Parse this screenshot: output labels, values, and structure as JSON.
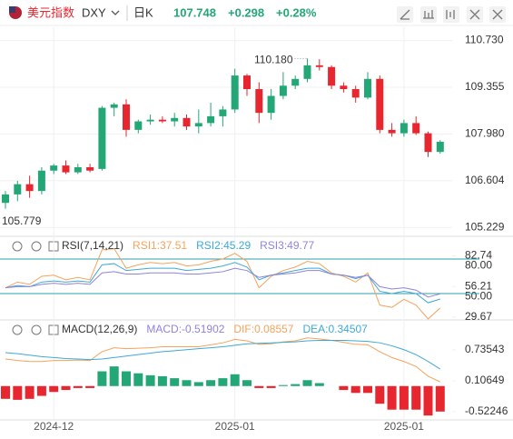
{
  "header": {
    "name": "美元指数",
    "symbol": "DXY",
    "period": "日K",
    "price": "107.748",
    "change": "+0.298",
    "change_pct": "+0.28%"
  },
  "chart_data": [
    {
      "type": "candlestick",
      "up_color": "#23a776",
      "down_color": "#e8262f",
      "categories": [
        null,
        null,
        null,
        null,
        "2024-12",
        null,
        null,
        null,
        null,
        null,
        null,
        null,
        null,
        null,
        null,
        null,
        null,
        null,
        null,
        "2025-01",
        null,
        null,
        null,
        null,
        null,
        null,
        null,
        null,
        null,
        null,
        null,
        null,
        null,
        "2025-01",
        null,
        null,
        null
      ],
      "open": [
        105.95,
        106.2,
        106.5,
        106.3,
        106.9,
        107.05,
        106.85,
        107.0,
        106.95,
        108.75,
        108.85,
        108.1,
        108.35,
        108.4,
        108.35,
        108.45,
        108.2,
        108.3,
        108.5,
        108.7,
        109.7,
        109.3,
        108.6,
        109.1,
        109.4,
        109.6,
        110.0,
        109.95,
        109.4,
        109.3,
        109.05,
        109.6,
        108.1,
        108.0,
        108.3,
        108.0,
        107.45
      ],
      "high": [
        106.3,
        106.6,
        106.75,
        107.0,
        107.1,
        107.2,
        107.1,
        107.1,
        108.8,
        108.9,
        109.0,
        108.4,
        108.55,
        108.5,
        108.6,
        108.55,
        108.7,
        108.9,
        108.8,
        109.9,
        109.75,
        109.5,
        109.3,
        109.8,
        109.7,
        110.2,
        110.18,
        110.0,
        109.5,
        109.4,
        109.8,
        109.7,
        108.3,
        108.4,
        108.5,
        108.05,
        107.8
      ],
      "low": [
        105.779,
        106.0,
        106.1,
        106.2,
        106.8,
        106.8,
        106.8,
        106.85,
        106.9,
        108.5,
        107.9,
        108.0,
        108.25,
        108.3,
        108.2,
        108.1,
        108.0,
        108.2,
        108.2,
        108.6,
        109.1,
        108.3,
        108.4,
        109.0,
        109.3,
        109.5,
        109.85,
        109.3,
        109.2,
        108.9,
        109.0,
        108.0,
        107.9,
        107.9,
        107.95,
        107.3,
        107.4
      ],
      "close": [
        106.2,
        106.5,
        106.3,
        106.9,
        107.05,
        106.85,
        107.0,
        106.9,
        108.75,
        108.85,
        108.1,
        108.35,
        108.4,
        108.35,
        108.45,
        108.2,
        108.3,
        108.5,
        108.7,
        109.7,
        109.3,
        108.6,
        109.1,
        109.4,
        109.6,
        110.0,
        109.95,
        109.4,
        109.3,
        109.05,
        109.6,
        108.1,
        108.0,
        108.3,
        108.0,
        107.45,
        107.748
      ],
      "high_label": "110.180",
      "low_label": "105.779",
      "ylim": [
        105.02,
        111.12
      ],
      "yticks": [
        {
          "value": 110.73,
          "label": "110.730"
        },
        109.355,
        {
          "value": 107.98,
          "label": "107.980"
        },
        106.604,
        105.229
      ],
      "grid": true
    },
    {
      "type": "line",
      "title": "RSI(7,14,21)",
      "series": [
        {
          "name": "RSI1:37.51",
          "color": "#f5a35c",
          "values": [
            55,
            60,
            58,
            65,
            66,
            62,
            64,
            62,
            88,
            89,
            72,
            75,
            77,
            76,
            77,
            74,
            75,
            78,
            80,
            85,
            78,
            55,
            65,
            70,
            73,
            78,
            76,
            68,
            65,
            60,
            68,
            40,
            38,
            45,
            40,
            28,
            37.51
          ]
        },
        {
          "name": "RSI2:45.29",
          "color": "#3fa9d6",
          "values": [
            55,
            57,
            56,
            60,
            61,
            60,
            61,
            60,
            75,
            76,
            70,
            71,
            72,
            72,
            72,
            70,
            71,
            72,
            74,
            77,
            73,
            62,
            66,
            68,
            70,
            72,
            72,
            67,
            66,
            63,
            66,
            52,
            50,
            52,
            50,
            42,
            45.29
          ]
        },
        {
          "name": "RSI3:49.77",
          "color": "#8e84dc",
          "values": [
            55,
            56,
            56,
            58,
            59,
            58,
            59,
            58,
            68,
            69,
            67,
            67,
            68,
            68,
            68,
            67,
            67,
            68,
            69,
            72,
            70,
            64,
            66,
            67,
            68,
            70,
            70,
            67,
            66,
            64,
            66,
            56,
            54,
            55,
            53,
            47,
            49.77
          ]
        }
      ],
      "hlines": [
        80,
        50
      ],
      "hline_color": "#2f9fae",
      "ylim": [
        28.69,
        83.95
      ],
      "yticks": [
        {
          "value": 80,
          "label": "80.00"
        },
        82.74,
        56.21,
        {
          "value": 50,
          "label": "50.00"
        },
        29.67
      ]
    },
    {
      "type": "combo",
      "title": "MACD(12,26,9)",
      "bars": {
        "name": "MACD:-0.51902",
        "color": "#8e84dc",
        "up_color": "#23a776",
        "down_color": "#e8262f",
        "values": [
          -0.26,
          -0.28,
          -0.26,
          -0.2,
          -0.12,
          -0.08,
          -0.04,
          -0.04,
          0.3,
          0.4,
          0.3,
          0.26,
          0.22,
          0.2,
          0.16,
          0.12,
          0.08,
          0.12,
          0.16,
          0.24,
          0.12,
          -0.04,
          -0.04,
          0.02,
          0.04,
          0.12,
          0.06,
          0.0,
          -0.08,
          -0.14,
          -0.14,
          -0.36,
          -0.48,
          -0.48,
          -0.48,
          -0.6,
          -0.51902
        ]
      },
      "series": [
        {
          "name": "DIF:0.08557",
          "color": "#f5a35c",
          "values": [
            0.55,
            0.52,
            0.5,
            0.5,
            0.52,
            0.52,
            0.53,
            0.52,
            0.7,
            0.78,
            0.76,
            0.77,
            0.78,
            0.8,
            0.8,
            0.8,
            0.8,
            0.84,
            0.88,
            0.95,
            0.92,
            0.85,
            0.86,
            0.9,
            0.92,
            0.98,
            0.96,
            0.93,
            0.89,
            0.85,
            0.84,
            0.7,
            0.58,
            0.5,
            0.4,
            0.2,
            0.08557
          ]
        },
        {
          "name": "DEA:0.34507",
          "color": "#3fa9d6",
          "values": [
            0.68,
            0.66,
            0.63,
            0.6,
            0.58,
            0.56,
            0.55,
            0.54,
            0.55,
            0.58,
            0.61,
            0.64,
            0.67,
            0.7,
            0.72,
            0.74,
            0.76,
            0.78,
            0.8,
            0.83,
            0.86,
            0.87,
            0.88,
            0.89,
            0.9,
            0.92,
            0.93,
            0.93,
            0.93,
            0.92,
            0.91,
            0.88,
            0.82,
            0.74,
            0.64,
            0.5,
            0.34507
          ]
        }
      ],
      "ylim": [
        -0.689,
        1.013
      ],
      "yticks": [
        0.73543,
        0.10649,
        -0.52246
      ]
    }
  ]
}
